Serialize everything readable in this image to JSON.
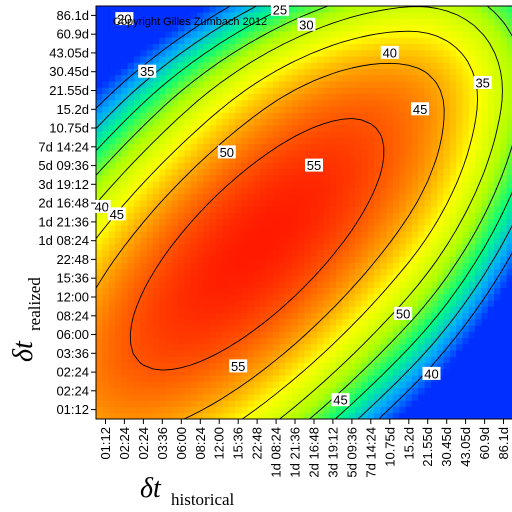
{
  "chart_data": {
    "type": "heatmap",
    "copyright": "Copyright Gilles Zumbach 2012",
    "x_axis": {
      "symbol": "δt",
      "subscript": "historical",
      "tick_labels": [
        "01:12",
        "02:24",
        "02:24",
        "03:36",
        "06:00",
        "08:24",
        "12:00",
        "15:36",
        "22:48",
        "1d 08:24",
        "1d 21:36",
        "2d 16:48",
        "3d 19:12",
        "5d 09:36",
        "7d 14:24",
        "10.75d",
        "15.2d",
        "21.55d",
        "30.45d",
        "43.05d",
        "60.9d",
        "86.1d"
      ]
    },
    "y_axis": {
      "symbol": "δt",
      "subscript": "realized",
      "tick_labels": [
        "01:12",
        "02:24",
        "02:24",
        "03:36",
        "06:00",
        "08:24",
        "12:00",
        "15:36",
        "22:48",
        "1d 08:24",
        "1d 21:36",
        "2d 16:48",
        "3d 19:12",
        "5d 09:36",
        "7d 14:24",
        "10.75d",
        "15.2d",
        "21.55d",
        "30.45d",
        "43.05d",
        "60.9d",
        "86.1d"
      ]
    },
    "contour_levels": [
      20,
      25,
      30,
      35,
      40,
      45,
      50,
      55
    ],
    "contour_labels": [
      {
        "text": "20",
        "col": 1.0,
        "row": 20.8
      },
      {
        "text": "25",
        "col": 9.2,
        "row": 21.3
      },
      {
        "text": "30",
        "col": 10.6,
        "row": 20.5
      },
      {
        "text": "35",
        "col": 2.2,
        "row": 18.0
      },
      {
        "text": "40",
        "col": 15.0,
        "row": 19.0
      },
      {
        "text": "35",
        "col": 19.9,
        "row": 17.4
      },
      {
        "text": "45",
        "col": 16.6,
        "row": 16.0
      },
      {
        "text": "50",
        "col": 6.4,
        "row": 13.7
      },
      {
        "text": "55",
        "col": 11.0,
        "row": 13.0
      },
      {
        "text": "40",
        "col": -0.2,
        "row": 10.8
      },
      {
        "text": "45",
        "col": 0.6,
        "row": 10.4
      },
      {
        "text": "50",
        "col": 15.7,
        "row": 5.1
      },
      {
        "text": "55",
        "col": 7.0,
        "row": 2.3
      },
      {
        "text": "40",
        "col": 17.2,
        "row": 1.9
      },
      {
        "text": "45",
        "col": 12.4,
        "row": 0.5
      }
    ],
    "colormap": [
      "#0030ff",
      "#00a8ff",
      "#00ff80",
      "#b0ff00",
      "#ffff00",
      "#ff8000",
      "#ff0000"
    ],
    "value_range": [
      15,
      60
    ]
  }
}
